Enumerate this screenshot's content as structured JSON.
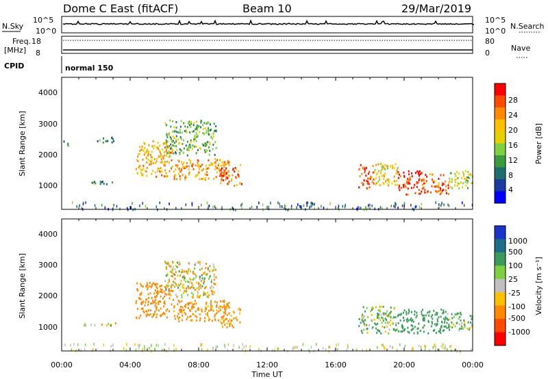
{
  "header": {
    "radar": "Dome C East (fitACF)",
    "beam": "Beam 10",
    "date": "29/Mar/2019"
  },
  "noise_panel": {
    "left_label": "N.Sky",
    "right_label": "N.Search",
    "ticks_left": [
      "10^5",
      "10^0"
    ],
    "ticks_right": [
      "10^5",
      "10^0"
    ]
  },
  "freq_panel": {
    "left_label_1": "Freq.",
    "left_label_2": "[MHz]",
    "right_label": "Nave",
    "ticks_left": [
      "18",
      "8"
    ],
    "ticks_right": [
      "80",
      "0"
    ]
  },
  "cpid_panel": {
    "label": "CPID",
    "mode": "normal 150"
  },
  "power_panel": {
    "ylabel": "Slant Range [km]",
    "yticks": [
      "4000",
      "3000",
      "2000",
      "1000"
    ],
    "colorbar_label": "Power [dB]",
    "colorbar_ticks": [
      "28",
      "24",
      "20",
      "16",
      "12",
      "8",
      "4"
    ],
    "colorbar_colors": [
      "#ff0000",
      "#ff4a00",
      "#ff8a00",
      "#ffc000",
      "#e6d000",
      "#7fd040",
      "#3c9a3c",
      "#1e6e6e",
      "#1a3ca0",
      "#0000ff"
    ]
  },
  "velocity_panel": {
    "ylabel": "Slant Range [km]",
    "yticks": [
      "4000",
      "3000",
      "2000",
      "1000"
    ],
    "colorbar_label": "Velocity [m s⁻¹]",
    "colorbar_ticks": [
      "1000",
      "500",
      "100",
      "25",
      "-25",
      "-100",
      "-500",
      "-1000"
    ],
    "colorbar_colors": [
      "#1a35c8",
      "#1e6e8a",
      "#3c9a5a",
      "#7fd040",
      "#c0c0c0",
      "#ffc000",
      "#ff8a00",
      "#ff4a00",
      "#ff0000"
    ]
  },
  "xaxis": {
    "ticks": [
      "00:00",
      "04:00",
      "08:00",
      "12:00",
      "16:00",
      "20:00",
      "00:00"
    ],
    "label": "Time UT"
  },
  "chart_data": {
    "type": "heatmap",
    "title": "Dome C East (fitACF)  Beam 10  29/Mar/2019",
    "xlabel": "Time UT",
    "ylabel": "Slant Range [km]",
    "xlim": [
      0,
      24
    ],
    "ylim": [
      180,
      4600
    ],
    "power_range_dB": [
      0,
      30
    ],
    "velocity_range_ms": [
      -1000,
      1000
    ],
    "power_regions": [
      {
        "t0": 0.1,
        "t1": 0.4,
        "r0": 2300,
        "r1": 2500,
        "value": 8
      },
      {
        "t0": 1.2,
        "t1": 3.2,
        "r0": 1050,
        "r1": 1150,
        "value": 9
      },
      {
        "t0": 1.8,
        "t1": 3.0,
        "r0": 2450,
        "r1": 2650,
        "value": 10
      },
      {
        "t0": 4.3,
        "t1": 6.5,
        "r0": 1300,
        "r1": 2500,
        "value": 20
      },
      {
        "t0": 6.5,
        "t1": 9.8,
        "r0": 1200,
        "r1": 1900,
        "value": 22
      },
      {
        "t0": 6.0,
        "t1": 9.0,
        "r0": 2000,
        "r1": 3200,
        "value": 12
      },
      {
        "t0": 9.2,
        "t1": 10.5,
        "r0": 1000,
        "r1": 1700,
        "value": 24
      },
      {
        "t0": 17.3,
        "t1": 18.2,
        "r0": 900,
        "r1": 1700,
        "value": 26
      },
      {
        "t0": 18.2,
        "t1": 19.6,
        "r0": 1000,
        "r1": 1800,
        "value": 18
      },
      {
        "t0": 19.6,
        "t1": 21.0,
        "r0": 700,
        "r1": 1500,
        "value": 28
      },
      {
        "t0": 21.0,
        "t1": 22.6,
        "r0": 700,
        "r1": 1400,
        "value": 24
      },
      {
        "t0": 22.6,
        "t1": 24.0,
        "r0": 900,
        "r1": 1500,
        "value": 16
      }
    ],
    "velocity_regions": [
      {
        "t0": 1.2,
        "t1": 3.2,
        "r0": 1050,
        "r1": 1150,
        "value": -25
      },
      {
        "t0": 4.3,
        "t1": 6.5,
        "r0": 1300,
        "r1": 2500,
        "value": -300
      },
      {
        "t0": 6.5,
        "t1": 9.8,
        "r0": 1200,
        "r1": 1900,
        "value": -250
      },
      {
        "t0": 6.0,
        "t1": 9.0,
        "r0": 2000,
        "r1": 3200,
        "value": -50
      },
      {
        "t0": 9.2,
        "t1": 10.5,
        "r0": 1000,
        "r1": 1700,
        "value": -200
      },
      {
        "t0": 17.3,
        "t1": 19.5,
        "r0": 800,
        "r1": 1700,
        "value": 100
      },
      {
        "t0": 19.5,
        "t1": 22.5,
        "r0": 800,
        "r1": 1600,
        "value": 300
      },
      {
        "t0": 22.5,
        "t1": 24.0,
        "r0": 900,
        "r1": 1500,
        "value": 100
      }
    ]
  }
}
